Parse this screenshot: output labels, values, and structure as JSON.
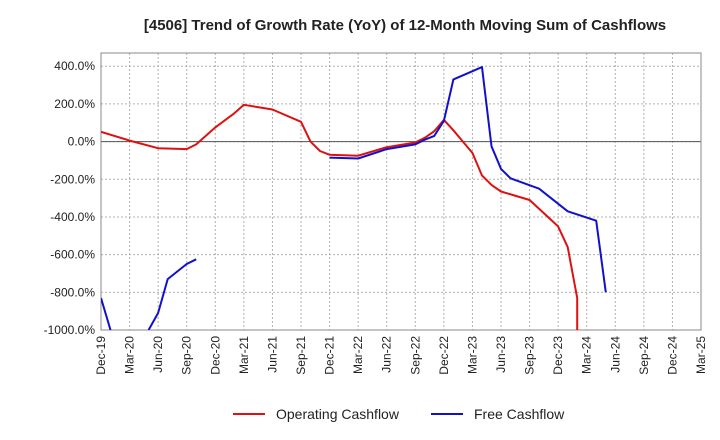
{
  "chart_data": {
    "type": "line",
    "title": "[4506]  Trend of Growth Rate (YoY) of 12-Month Moving Sum of Cashflows",
    "xlabel": "",
    "ylabel": "",
    "x_ticks": [
      "Dec-19",
      "Mar-20",
      "Jun-20",
      "Sep-20",
      "Dec-20",
      "Mar-21",
      "Jun-21",
      "Sep-21",
      "Dec-21",
      "Mar-22",
      "Jun-22",
      "Sep-22",
      "Dec-22",
      "Mar-23",
      "Jun-23",
      "Sep-23",
      "Dec-23",
      "Mar-24",
      "Jun-24",
      "Sep-24",
      "Dec-24",
      "Mar-25"
    ],
    "y_ticks": [
      "400.0%",
      "200.0%",
      "0.0%",
      "-200.0%",
      "-400.0%",
      "-600.0%",
      "-800.0%",
      "-1000.0%"
    ],
    "y_tick_values": [
      400,
      200,
      0,
      -200,
      -400,
      -600,
      -800,
      -1000
    ],
    "ylim": [
      -1000,
      470
    ],
    "grid": true,
    "legend_position": "bottom",
    "series": [
      {
        "name": "Operating Cashflow",
        "color": "#dd1111",
        "points": [
          [
            "2019-12",
            52
          ],
          [
            "2020-03",
            5
          ],
          [
            "2020-06",
            -35
          ],
          [
            "2020-09",
            -40
          ],
          [
            "2020-10",
            -15
          ],
          [
            "2020-12",
            75
          ],
          [
            "2021-02",
            150
          ],
          [
            "2021-03",
            195
          ],
          [
            "2021-06",
            170
          ],
          [
            "2021-09",
            105
          ],
          [
            "2021-10",
            0
          ],
          [
            "2021-11",
            -50
          ],
          [
            "2021-12",
            -70
          ],
          [
            "2022-03",
            -75
          ],
          [
            "2022-06",
            -30
          ],
          [
            "2022-09",
            -5
          ],
          [
            "2022-10",
            20
          ],
          [
            "2022-11",
            55
          ],
          [
            "2022-12",
            115
          ],
          [
            "2023-01",
            60
          ],
          [
            "2023-02",
            0
          ],
          [
            "2023-03",
            -60
          ],
          [
            "2023-04",
            -180
          ],
          [
            "2023-05",
            -230
          ],
          [
            "2023-06",
            -265
          ],
          [
            "2023-09",
            -310
          ],
          [
            "2023-12",
            -450
          ],
          [
            "2024-01",
            -560
          ],
          [
            "2024-02",
            -830
          ],
          [
            "2024-02",
            -1000
          ]
        ]
      },
      {
        "name": "Free Cashflow",
        "color": "#1111cc",
        "segments": [
          [
            [
              "2019-12",
              -830
            ],
            [
              "2020-01",
              -1000
            ]
          ],
          [
            [
              "2020-05",
              -1000
            ],
            [
              "2020-06",
              -910
            ],
            [
              "2020-07",
              -730
            ],
            [
              "2020-09",
              -650
            ],
            [
              "2020-10",
              -625
            ]
          ],
          [
            [
              "2021-12",
              -85
            ],
            [
              "2022-03",
              -90
            ],
            [
              "2022-06",
              -40
            ],
            [
              "2022-09",
              -15
            ],
            [
              "2022-10",
              10
            ],
            [
              "2022-11",
              30
            ],
            [
              "2022-12",
              110
            ],
            [
              "2023-01",
              330
            ],
            [
              "2023-04",
              395
            ],
            [
              "2023-05",
              -25
            ],
            [
              "2023-06",
              -145
            ],
            [
              "2023-07",
              -195
            ],
            [
              "2023-10",
              -250
            ],
            [
              "2024-01",
              -370
            ],
            [
              "2024-04",
              -420
            ],
            [
              "2024-05",
              -800
            ]
          ]
        ]
      }
    ]
  }
}
